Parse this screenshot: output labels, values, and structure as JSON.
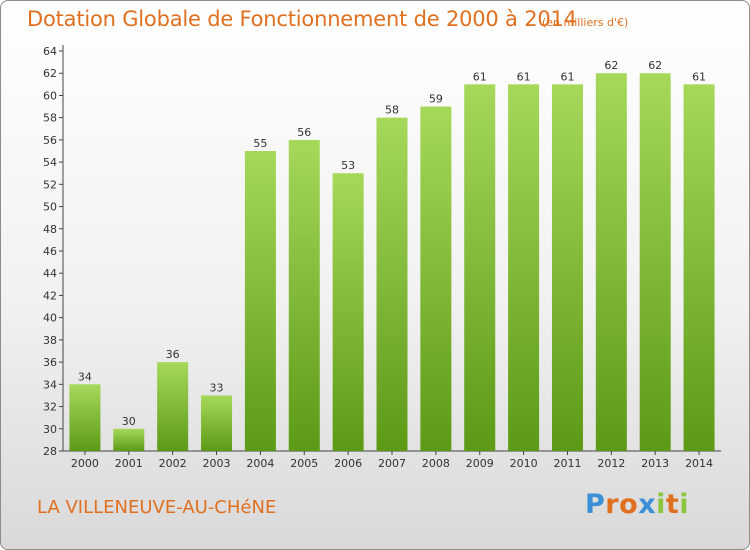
{
  "title": "Dotation Globale de Fonctionnement de 2000 à 2014",
  "subtitle": "(en milliers d'€)",
  "commune": "LA VILLENEUVE-AU-CHéNE",
  "logo": {
    "letters": [
      "P",
      "r",
      "o",
      "x",
      "i",
      "t",
      "i"
    ],
    "colors": [
      "#3a8fd6",
      "#e0701f",
      "#e0701f",
      "#3a8fd6",
      "#8cc63f",
      "#e0701f",
      "#8cc63f"
    ]
  },
  "colors": {
    "bar_top": "#a6d85a",
    "bar_bottom": "#5c9a16",
    "title": "#e0701f"
  },
  "chart_data": {
    "type": "bar",
    "title": "Dotation Globale de Fonctionnement de 2000 à 2014",
    "subtitle": "(en milliers d'€)",
    "categories": [
      "2000",
      "2001",
      "2002",
      "2003",
      "2004",
      "2005",
      "2006",
      "2007",
      "2008",
      "2009",
      "2010",
      "2011",
      "2012",
      "2013",
      "2014"
    ],
    "values": [
      34,
      30,
      36,
      33,
      55,
      56,
      53,
      58,
      59,
      61,
      61,
      61,
      62,
      62,
      61
    ],
    "ylim": [
      28,
      64
    ],
    "ytick_step": 2,
    "grid": false,
    "data_labels": true
  }
}
